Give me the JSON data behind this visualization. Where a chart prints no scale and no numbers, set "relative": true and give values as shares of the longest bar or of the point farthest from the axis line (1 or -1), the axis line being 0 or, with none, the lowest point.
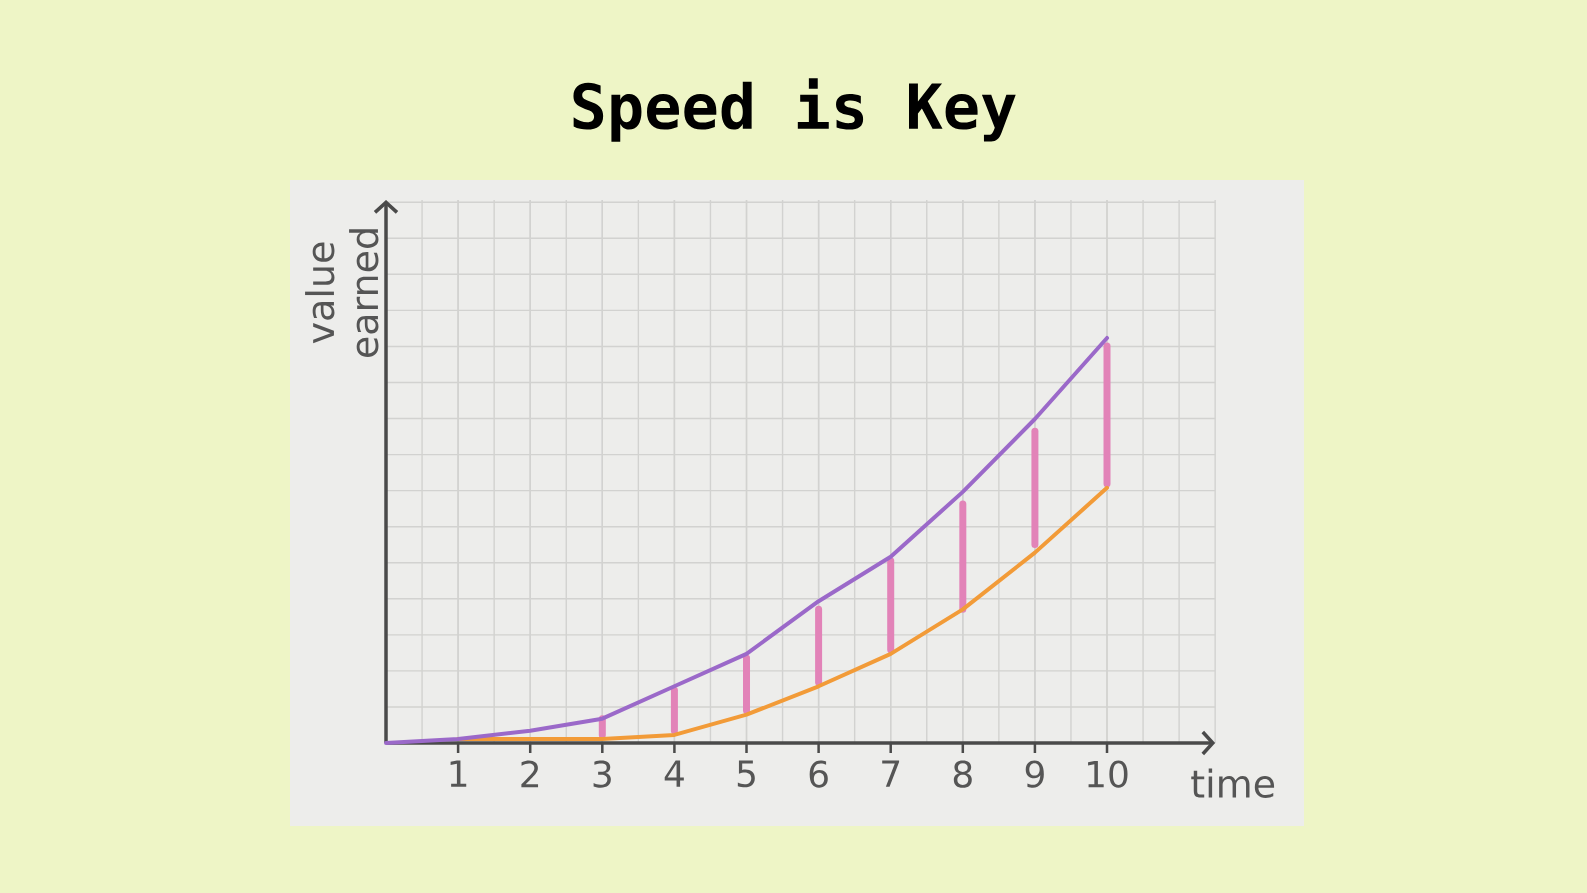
{
  "chart_data": {
    "type": "line",
    "title": "Speed is Key",
    "xlabel": "time",
    "ylabel": "value earned",
    "relative": true,
    "xlim": [
      0,
      11.5
    ],
    "xticks": [
      1,
      2,
      3,
      4,
      5,
      6,
      7,
      8,
      9,
      10
    ],
    "grid": true,
    "series": [
      {
        "color": "#9b69c9",
        "x": [
          0,
          1,
          2,
          3,
          4,
          5,
          6,
          7,
          8,
          9,
          10
        ],
        "values": [
          0,
          0.01,
          0.03,
          0.06,
          0.14,
          0.22,
          0.35,
          0.46,
          0.62,
          0.8,
          1
        ]
      },
      {
        "color": "#f29b38",
        "x": [
          1,
          2,
          3,
          4,
          5,
          6,
          7,
          8,
          9,
          10
        ],
        "values": [
          0.01,
          0.01,
          0.01,
          0.02,
          0.07,
          0.14,
          0.22,
          0.33,
          0.47,
          0.63
        ]
      },
      {
        "color": "#e283b8",
        "x": [
          3,
          3
        ],
        "values": [
          0.02,
          0.06
        ]
      },
      {
        "color": "#e283b8",
        "x": [
          4,
          4
        ],
        "values": [
          0.03,
          0.13
        ]
      },
      {
        "color": "#e283b8",
        "x": [
          5,
          5
        ],
        "values": [
          0.08,
          0.21
        ]
      },
      {
        "color": "#e283b8",
        "x": [
          6,
          6
        ],
        "values": [
          0.15,
          0.33
        ]
      },
      {
        "color": "#e283b8",
        "x": [
          7,
          7
        ],
        "values": [
          0.23,
          0.45
        ]
      },
      {
        "color": "#e283b8",
        "x": [
          8,
          8
        ],
        "values": [
          0.33,
          0.59
        ]
      },
      {
        "color": "#e283b8",
        "x": [
          9,
          9
        ],
        "values": [
          0.49,
          0.77
        ]
      },
      {
        "color": "#e283b8",
        "x": [
          10,
          10
        ],
        "values": [
          0.64,
          0.98
        ]
      }
    ]
  }
}
